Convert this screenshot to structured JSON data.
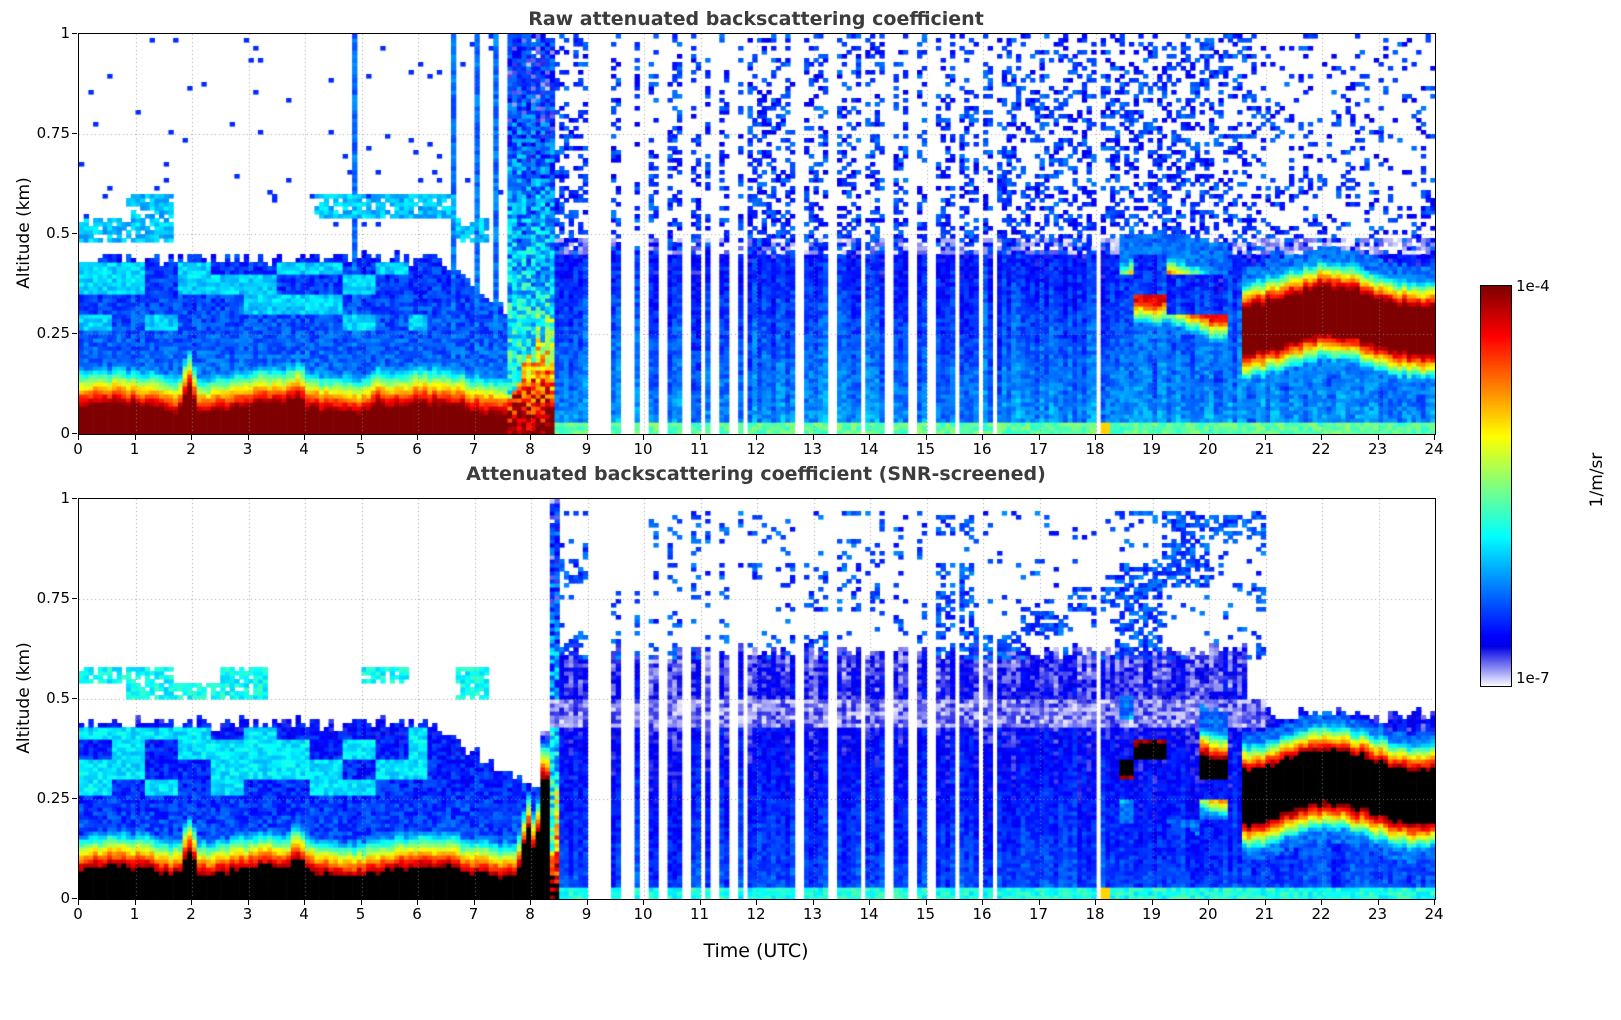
{
  "figure": {
    "background": "#ffffff"
  },
  "colorbar": {
    "max_label": "1e-4",
    "min_label": "1e-7",
    "unit": "1/m/sr",
    "scale": "log",
    "colormap": "jet-white-under",
    "vmin": 1e-07,
    "vmax": 0.0001
  },
  "chart_data": [
    {
      "type": "heatmap",
      "title": "Raw attenuated backscattering coefficient",
      "xlabel": "",
      "ylabel": "Altitude (km)",
      "xlim": [
        0,
        24
      ],
      "ylim": [
        0,
        1
      ],
      "xticks": [
        0,
        1,
        2,
        3,
        4,
        5,
        6,
        7,
        8,
        9,
        10,
        11,
        12,
        13,
        14,
        15,
        16,
        17,
        18,
        19,
        20,
        21,
        22,
        23,
        24
      ],
      "ytick_values": [
        0,
        0.25,
        0.5,
        0.75,
        1
      ],
      "ytick_labels": [
        "0",
        "0.25",
        "0.5",
        "0.75",
        "1"
      ],
      "units": "1/m/sr",
      "value_scale": "log10",
      "vmin_log": -7,
      "vmax_log": -4,
      "over_color": "rgb(127,0,0)",
      "grid": true,
      "synthesis": {
        "seed": 11,
        "surface": {
          "t_end": 7.6,
          "top_km": 0.065,
          "spikes": [
            [
              1.95,
              0.07
            ],
            [
              3.85,
              0.025
            ],
            [
              5.3,
              0.02
            ]
          ],
          "decay": 24
        },
        "mixed": {
          "top_km": 0.44,
          "value": -6.2
        },
        "mixed_shrink_t": 6.2,
        "mixed_shrink_rate": 0.09,
        "low_patches": {
          "z0": 0.26,
          "z1": 0.43,
          "value": -6.0,
          "frac": 0.55
        },
        "mid_cloud": {
          "t_end": 7.25,
          "z0": 0.48,
          "z1": 0.6,
          "value": -6.05,
          "frac": 0.5
        },
        "pre_speckle": 0.02,
        "tall_columns": [
          4.85,
          6.62,
          7.02,
          7.35
        ],
        "rain": {
          "t0": 7.45,
          "t1": 8.45
        },
        "post": {
          "value": -6.05,
          "solid_top": 0.45,
          "speckle_base": 0.55,
          "late_t": 20.8,
          "late_density": 0.33,
          "light_band": {
            "z0": 0.45,
            "z1": 0.495,
            "value": -6.9
          }
        },
        "bottom_cyan": {
          "z": 0.035,
          "value": -5.6
        },
        "green_patch": {
          "t": 18.15,
          "z": 0.03,
          "value": -5.0
        },
        "gaps": {
          "t0": 8.55,
          "t1": 14.55,
          "density": 0.22,
          "extra": [
            9.18,
            14.75,
            15.1,
            15.55,
            15.95,
            16.2,
            18.05
          ],
          "extra_w": 0.07
        },
        "elevated": [
          {
            "t0": 18.45,
            "t1": 20.35,
            "zc": 0.335,
            "half": 0.03,
            "value": -4.35,
            "broken": true
          },
          {
            "t0": 20.55,
            "t1": 24.01,
            "zc": 0.285,
            "half": 0.05,
            "value": -3.7,
            "broken": false
          }
        ]
      }
    },
    {
      "type": "heatmap",
      "title": "Attenuated backscattering coefficient (SNR-screened)",
      "xlabel": "Time (UTC)",
      "ylabel": "Altitude (km)",
      "xlim": [
        0,
        24
      ],
      "ylim": [
        0,
        1
      ],
      "xticks": [
        0,
        1,
        2,
        3,
        4,
        5,
        6,
        7,
        8,
        9,
        10,
        11,
        12,
        13,
        14,
        15,
        16,
        17,
        18,
        19,
        20,
        21,
        22,
        23,
        24
      ],
      "ytick_values": [
        0,
        0.25,
        0.5,
        0.75,
        1
      ],
      "ytick_labels": [
        "0",
        "0.25",
        "0.5",
        "0.75",
        "1"
      ],
      "units": "1/m/sr",
      "value_scale": "log10",
      "vmin_log": -7,
      "vmax_log": -4,
      "over_color": "#000000",
      "grid": true,
      "synthesis": {
        "seed": 23,
        "surface": {
          "t_end": 8.35,
          "top_km": 0.07,
          "spikes": [
            [
              1.95,
              0.07
            ],
            [
              3.85,
              0.03
            ],
            [
              7.95,
              0.12
            ],
            [
              8.25,
              0.3
            ]
          ],
          "decay": 26
        },
        "mixed": {
          "top_km": 0.44,
          "value": -6.3
        },
        "mixed_shrink_t": 6.2,
        "mixed_shrink_rate": 0.09,
        "low_patches": {
          "z0": 0.26,
          "z1": 0.43,
          "value": -5.95,
          "frac": 0.6
        },
        "mid_cloud": {
          "t_end": 7.25,
          "z0": 0.5,
          "z1": 0.58,
          "value": -5.85,
          "frac": 0.45
        },
        "pre_speckle": 0.0,
        "tall_columns": [],
        "rain": {
          "t0": 7.8,
          "t1": 8.5
        },
        "post": {
          "value": -6.3,
          "solid_top": 0.62,
          "late_t": 20.7,
          "late_top": 0.46
        },
        "light_band": {
          "t0": 8.0,
          "t1": 21.0,
          "z0": 0.43,
          "z1": 0.5,
          "value": -6.85
        },
        "speckle_high": {
          "t0": 8.4,
          "t1": 21.0,
          "z0": 0.6,
          "z1": 0.97,
          "density": 0.22
        },
        "bottom_cyan": {
          "z": 0.03,
          "value": -5.8
        },
        "green_patch": {
          "t": 18.15,
          "z": 0.03,
          "value": -5.0
        },
        "gaps": {
          "t0": 8.55,
          "t1": 14.55,
          "density": 0.22,
          "extra": [
            9.18,
            14.75,
            15.1,
            15.55,
            15.95,
            16.2,
            18.05
          ],
          "extra_w": 0.07
        },
        "elevated": [
          {
            "t0": 18.45,
            "t1": 20.35,
            "zc": 0.33,
            "half": 0.028,
            "value": -3.6,
            "broken": true
          },
          {
            "t0": 20.6,
            "t1": 24.01,
            "zc": 0.28,
            "half": 0.05,
            "value": -3.4,
            "broken": false
          }
        ]
      }
    }
  ]
}
